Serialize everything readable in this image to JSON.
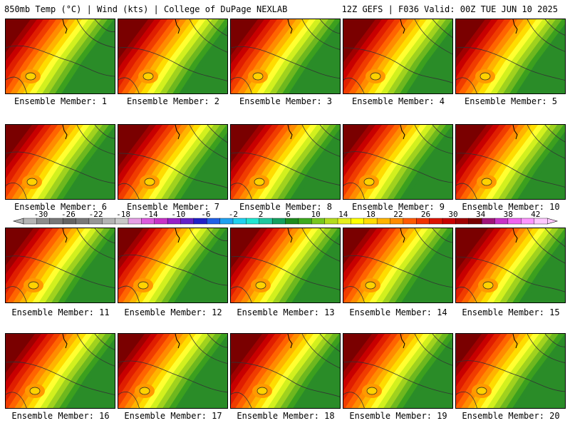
{
  "header": {
    "left": "850mb Temp (°C) | Wind (kts) | College of DuPage NEXLAB",
    "right": "12Z GEFS | F036 Valid: 00Z TUE JUN 10 2025"
  },
  "members": [
    "Ensemble Member: 1",
    "Ensemble Member: 2",
    "Ensemble Member: 3",
    "Ensemble Member: 4",
    "Ensemble Member: 5",
    "Ensemble Member: 6",
    "Ensemble Member: 7",
    "Ensemble Member: 8",
    "Ensemble Member: 9",
    "Ensemble Member: 10",
    "Ensemble Member: 11",
    "Ensemble Member: 12",
    "Ensemble Member: 13",
    "Ensemble Member: 14",
    "Ensemble Member: 15",
    "Ensemble Member: 16",
    "Ensemble Member: 17",
    "Ensemble Member: 18",
    "Ensemble Member: 19",
    "Ensemble Member: 20"
  ],
  "colorbar": {
    "labels": [
      "-30",
      "-26",
      "-22",
      "-18",
      "-14",
      "-10",
      "-6",
      "-2",
      "2",
      "6",
      "10",
      "14",
      "18",
      "22",
      "26",
      "30",
      "34",
      "38",
      "42"
    ],
    "colors": [
      "#b4b4b4",
      "#8c8c8c",
      "#787878",
      "#646464",
      "#787878",
      "#969696",
      "#b4b4b4",
      "#c8c8c8",
      "#e6a0e6",
      "#dc5adc",
      "#c832c8",
      "#9620c8",
      "#6420c8",
      "#2020c8",
      "#2060e6",
      "#20a0f0",
      "#20d2f0",
      "#20e6d2",
      "#20c8a0",
      "#14a060",
      "#1e8c1e",
      "#3caa1e",
      "#78c81e",
      "#b4dc1e",
      "#e6f01e",
      "#ffff00",
      "#ffdc00",
      "#ffb400",
      "#ff8c00",
      "#ff5a00",
      "#f03200",
      "#dc1400",
      "#c80000",
      "#a00000",
      "#780000",
      "#a0147a",
      "#c832c8",
      "#f064f0",
      "#ff96ff",
      "#ffc8ff"
    ]
  }
}
